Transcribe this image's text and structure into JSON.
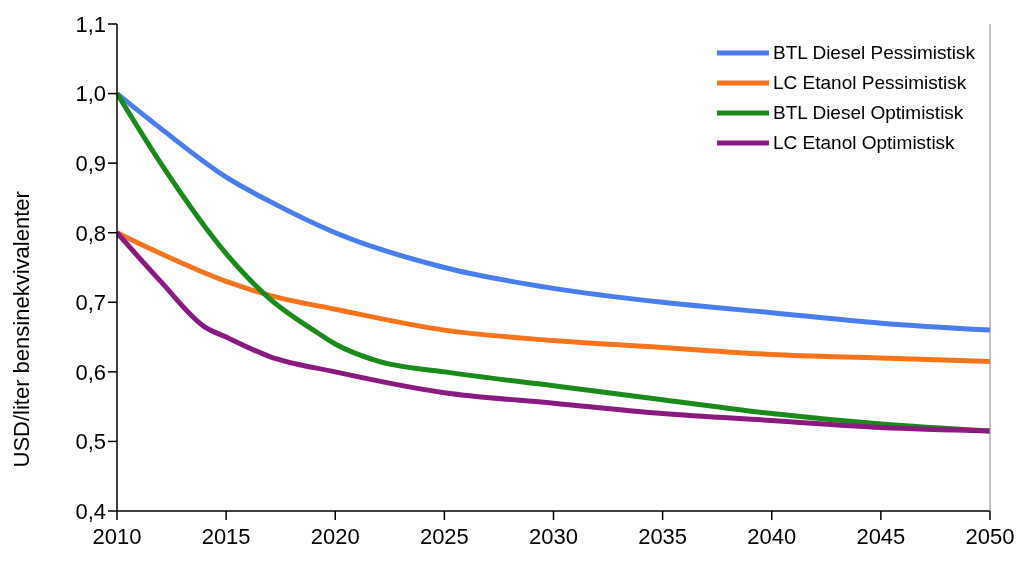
{
  "chart_data": {
    "type": "line",
    "ylabel": "USD/liter bensinekvivalenter",
    "xlim": [
      2010,
      2050
    ],
    "xticks": [
      2010,
      2015,
      2020,
      2025,
      2030,
      2035,
      2040,
      2045,
      2050
    ],
    "ylim": [
      0.4,
      1.1
    ],
    "yticks": [
      {
        "value": 0.4,
        "label": "0,4"
      },
      {
        "value": 0.5,
        "label": "0,5"
      },
      {
        "value": 0.6,
        "label": "0,6"
      },
      {
        "value": 0.7,
        "label": "0,7"
      },
      {
        "value": 0.8,
        "label": "0,8"
      },
      {
        "value": 0.9,
        "label": "0,9"
      },
      {
        "value": 1.0,
        "label": "1,0"
      },
      {
        "value": 1.1,
        "label": "1,1"
      }
    ],
    "grid": false,
    "legend": "top right",
    "marker": "none",
    "line_style": "solid",
    "series": [
      {
        "name": "BTL Diesel Pessimistisk",
        "color": "#4a7ef0",
        "x": [
          2010,
          2012,
          2015,
          2017,
          2020,
          2025,
          2030,
          2035,
          2040,
          2045,
          2050
        ],
        "values": [
          1.0,
          0.95,
          0.88,
          0.845,
          0.8,
          0.75,
          0.72,
          0.7,
          0.685,
          0.67,
          0.66
        ]
      },
      {
        "name": "LC Etanol Pessimistisk",
        "color": "#f9741c",
        "x": [
          2010,
          2012,
          2015,
          2017,
          2020,
          2025,
          2030,
          2035,
          2040,
          2045,
          2050
        ],
        "values": [
          0.8,
          0.77,
          0.73,
          0.71,
          0.69,
          0.66,
          0.645,
          0.635,
          0.625,
          0.62,
          0.615
        ]
      },
      {
        "name": "BTL Diesel Optimistisk",
        "color": "#1a8a1a",
        "x": [
          2010,
          2012,
          2015,
          2017,
          2019,
          2020,
          2022,
          2025,
          2030,
          2035,
          2040,
          2045,
          2050
        ],
        "values": [
          1.0,
          0.9,
          0.77,
          0.705,
          0.66,
          0.64,
          0.615,
          0.6,
          0.58,
          0.56,
          0.54,
          0.525,
          0.515
        ]
      },
      {
        "name": "LC Etanol Optimistisk",
        "color": "#8a1a80",
        "x": [
          2010,
          2012,
          2014,
          2015,
          2017,
          2020,
          2025,
          2030,
          2035,
          2040,
          2045,
          2050
        ],
        "values": [
          0.8,
          0.73,
          0.665,
          0.65,
          0.622,
          0.6,
          0.57,
          0.555,
          0.54,
          0.53,
          0.52,
          0.515
        ]
      }
    ]
  }
}
